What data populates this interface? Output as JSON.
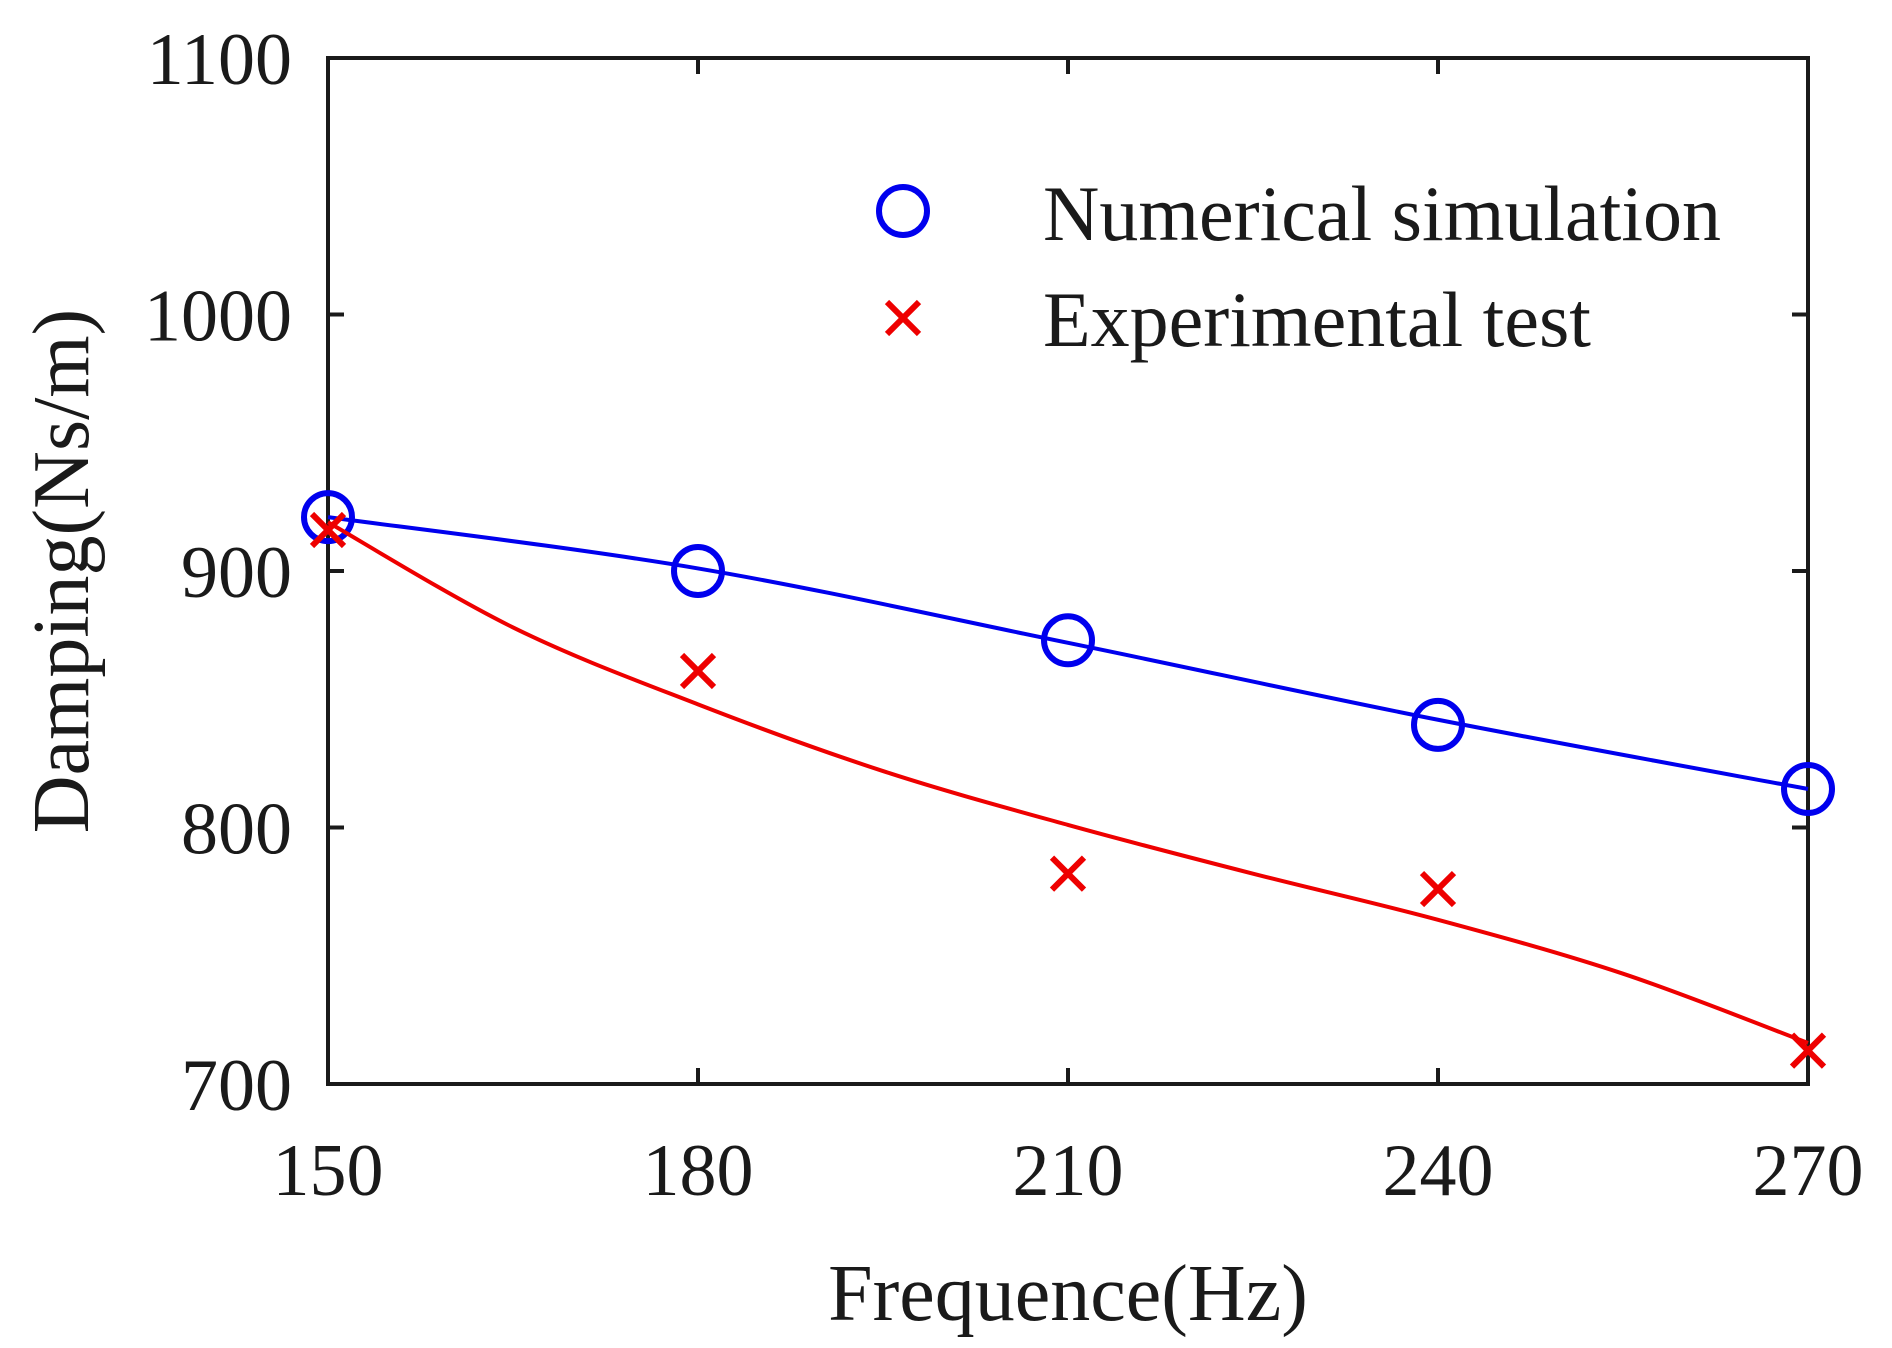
{
  "chart_data": {
    "type": "line",
    "title": "",
    "xlabel": "Frequence(Hz)",
    "ylabel": "Damping(Ns/m)",
    "xlim": [
      150,
      270
    ],
    "ylim": [
      700,
      1100
    ],
    "xticks": [
      150,
      180,
      210,
      240,
      270
    ],
    "yticks": [
      700,
      800,
      900,
      1000,
      1100
    ],
    "x_tick_labels": [
      "150",
      "180",
      "210",
      "240",
      "270"
    ],
    "y_tick_labels": [
      "700",
      "800",
      "900",
      "1000",
      "1100"
    ],
    "grid": false,
    "legend_position": "top-right",
    "series": [
      {
        "name": "Numerical simulation",
        "marker": "circle",
        "color": "#0000ee",
        "x": [
          150,
          180,
          210,
          240,
          270
        ],
        "values": [
          921,
          900,
          873,
          840,
          815
        ],
        "fit_curve": [
          [
            150,
            921
          ],
          [
            180,
            901
          ],
          [
            210,
            872
          ],
          [
            240,
            842
          ],
          [
            270,
            815
          ]
        ]
      },
      {
        "name": "Experimental test",
        "marker": "x",
        "color": "#ee0000",
        "x": [
          150,
          180,
          210,
          240,
          270
        ],
        "values": [
          916,
          861,
          782,
          776,
          713
        ],
        "fit_curve": [
          [
            150,
            919
          ],
          [
            165,
            878
          ],
          [
            180,
            848
          ],
          [
            195,
            822
          ],
          [
            210,
            801
          ],
          [
            225,
            782
          ],
          [
            240,
            764
          ],
          [
            255,
            743
          ],
          [
            270,
            716
          ]
        ]
      }
    ]
  }
}
